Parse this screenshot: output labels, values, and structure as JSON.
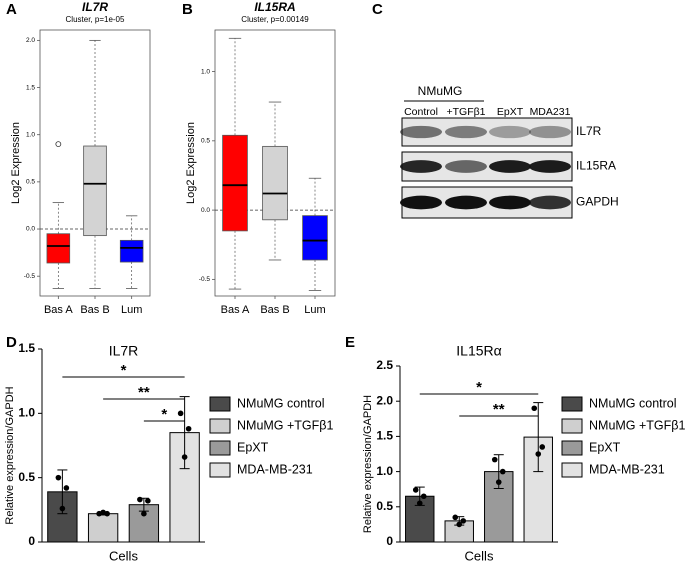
{
  "chart_data": [
    {
      "panel": "A",
      "type": "box",
      "title": "IL7R",
      "subtitle": "Cluster, p=1e-05",
      "y_label": "Log2 Expression",
      "categories": [
        "Bas A",
        "Bas B",
        "Lum"
      ],
      "colors": [
        "#ff0000",
        "#d3d3d3",
        "#0000ff"
      ],
      "boxes": [
        {
          "min": -0.63,
          "q1": -0.36,
          "median": -0.18,
          "q3": -0.05,
          "max": 0.28,
          "outliers": [
            0.9
          ]
        },
        {
          "min": -0.63,
          "q1": -0.07,
          "median": 0.48,
          "q3": 0.88,
          "max": 2.0,
          "outliers": []
        },
        {
          "min": -0.63,
          "q1": -0.35,
          "median": -0.2,
          "q3": -0.12,
          "max": 0.14,
          "outliers": []
        }
      ],
      "ylim": [
        -0.71,
        2.11
      ],
      "yticks": [
        -0.5,
        {
          "value": 0,
          "label": "0.0"
        },
        0.5,
        {
          "value": 1,
          "label": "1.0"
        },
        1.5,
        {
          "value": 2,
          "label": "2.0"
        }
      ],
      "reference_line": 0
    },
    {
      "panel": "B",
      "type": "box",
      "title": "IL15RA",
      "subtitle": "Cluster, p=0.00149",
      "y_label": "Log2 Expression",
      "categories": [
        "Bas A",
        "Bas B",
        "Lum"
      ],
      "colors": [
        "#ff0000",
        "#d3d3d3",
        "#0000ff"
      ],
      "boxes": [
        {
          "min": -0.57,
          "q1": -0.15,
          "median": 0.18,
          "q3": 0.54,
          "max": 1.24,
          "outliers": []
        },
        {
          "min": -0.36,
          "q1": -0.07,
          "median": 0.12,
          "q3": 0.46,
          "max": 0.78,
          "outliers": []
        },
        {
          "min": -0.58,
          "q1": -0.36,
          "median": -0.22,
          "q3": -0.04,
          "max": 0.23,
          "outliers": []
        }
      ],
      "ylim": [
        -0.62,
        1.3
      ],
      "yticks": [
        -0.5,
        {
          "value": 0,
          "label": "0.0"
        },
        0.5,
        {
          "value": 1,
          "label": "1.0"
        }
      ],
      "reference_line": 0
    },
    {
      "panel": "D",
      "type": "bar",
      "title": "IL7R",
      "y_label": "Relative expression/GAPDH",
      "categories": [
        "Cells"
      ],
      "series": [
        {
          "name": "NMuMG control",
          "color": "#4a4a4a",
          "values": [
            0.39
          ],
          "errors": [
            0.17
          ],
          "points": [
            [
              0.5,
              0.42,
              0.26
            ]
          ]
        },
        {
          "name": "NMuMG +TGFβ1",
          "color": "#cfcfcf",
          "values": [
            0.22
          ],
          "errors": [
            0.01
          ],
          "points": [
            [
              0.22,
              0.22,
              0.23
            ]
          ]
        },
        {
          "name": "EpXT",
          "color": "#9a9a9a",
          "values": [
            0.29
          ],
          "errors": [
            0.05
          ],
          "points": [
            [
              0.33,
              0.32,
              0.22
            ]
          ]
        },
        {
          "name": "MDA-MB-231",
          "color": "#e2e2e2",
          "values": [
            0.85
          ],
          "errors": [
            0.28
          ],
          "points": [
            [
              1.0,
              0.88,
              0.66
            ]
          ]
        }
      ],
      "ylim": [
        0,
        1.5
      ],
      "yticks": [
        0,
        0.5,
        {
          "value": 1,
          "label": "1.0"
        },
        1.5
      ],
      "annotations": [
        {
          "text": "*",
          "from": 0,
          "to": 3
        },
        {
          "text": "**",
          "from": 1,
          "to": 3
        },
        {
          "text": "*",
          "from": 2,
          "to": 3
        }
      ]
    },
    {
      "panel": "E",
      "type": "bar",
      "title": "IL15Rα",
      "y_label": "Relative expression/GAPDH",
      "categories": [
        "Cells"
      ],
      "series": [
        {
          "name": "NMuMG control",
          "color": "#4a4a4a",
          "values": [
            0.65
          ],
          "errors": [
            0.13
          ],
          "points": [
            [
              0.74,
              0.65,
              0.55
            ]
          ]
        },
        {
          "name": "NMuMG +TGFβ1",
          "color": "#cfcfcf",
          "values": [
            0.3
          ],
          "errors": [
            0.06
          ],
          "points": [
            [
              0.35,
              0.3,
              0.25
            ]
          ]
        },
        {
          "name": "EpXT",
          "color": "#9a9a9a",
          "values": [
            1.0
          ],
          "errors": [
            0.24
          ],
          "points": [
            [
              1.17,
              1.0,
              0.85
            ]
          ]
        },
        {
          "name": "MDA-MB-231",
          "color": "#e2e2e2",
          "values": [
            1.49
          ],
          "errors": [
            0.49
          ],
          "points": [
            [
              1.9,
              1.35,
              1.25
            ]
          ]
        }
      ],
      "ylim": [
        0,
        2.5
      ],
      "yticks": [
        0,
        0.5,
        {
          "value": 1,
          "label": "1.0"
        },
        1.5,
        {
          "value": 2,
          "label": "2.0"
        },
        2.5
      ],
      "annotations": [
        {
          "text": "*",
          "from": 0,
          "to": 3
        },
        {
          "text": "**",
          "from": 1,
          "to": 3
        }
      ]
    }
  ],
  "blot": {
    "panel": "C",
    "group": "NMuMG",
    "lanes": [
      "Control",
      "+TGFβ1",
      "EpXT",
      "MDA231"
    ],
    "proteins": [
      "IL7R",
      "IL15RA",
      "GAPDH"
    ]
  }
}
